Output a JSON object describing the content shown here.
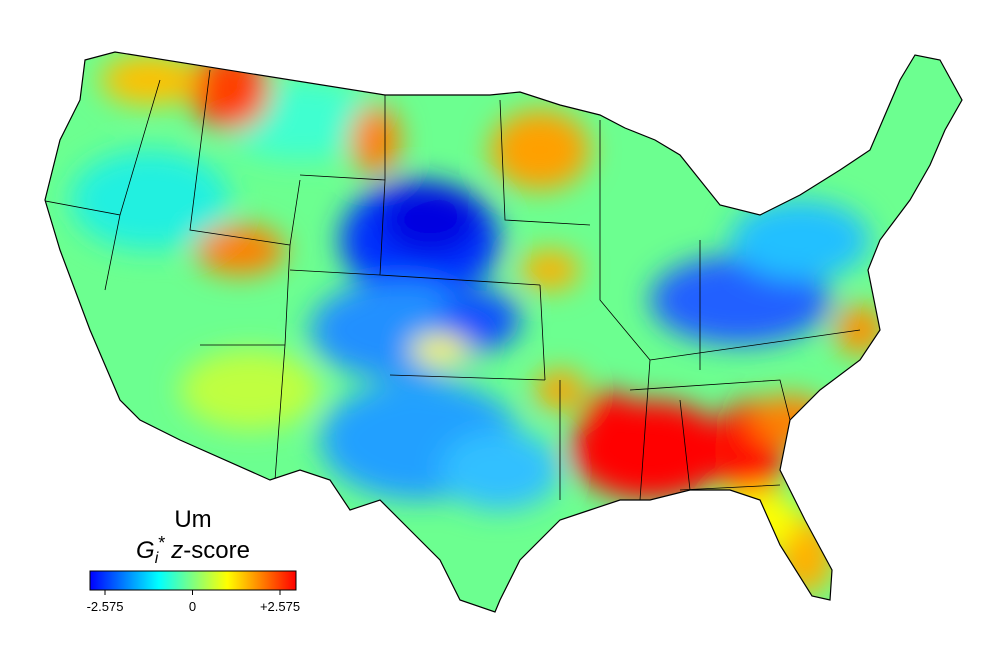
{
  "legend": {
    "title": "Um",
    "subtitle": {
      "symbol": "G",
      "subscript": "i",
      "superscript": "*",
      "variable": "z",
      "suffix": "-score"
    },
    "range": [
      -2.575,
      2.575
    ],
    "colors": [
      "#0000ff",
      "#00ffff",
      "#ffff00",
      "#ff0000"
    ],
    "ticks": [
      -2.575,
      0,
      {
        "value": 2.575,
        "label": "+2.575"
      }
    ]
  }
}
